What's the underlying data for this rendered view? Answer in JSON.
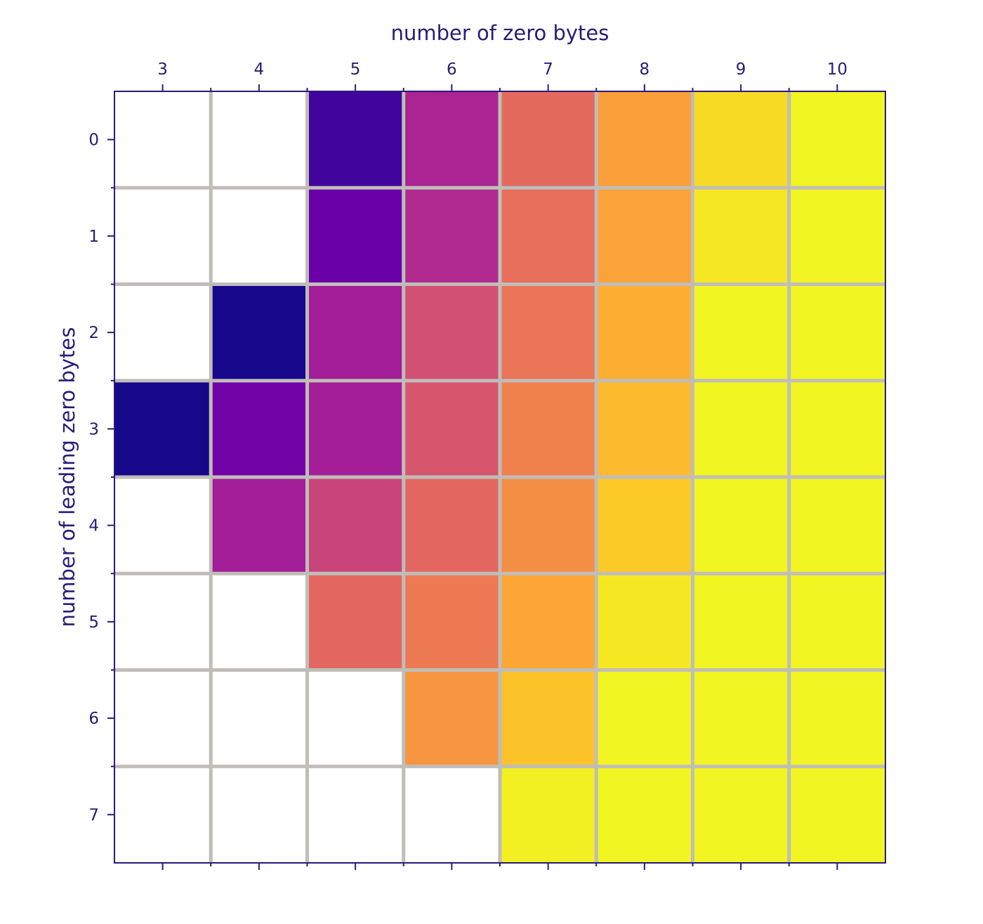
{
  "chart_data": {
    "type": "heatmap",
    "title": "",
    "xlabel": "number of zero bytes",
    "ylabel": "number of leading zero bytes",
    "x_categories": [
      "3",
      "4",
      "5",
      "6",
      "7",
      "8",
      "9",
      "10"
    ],
    "y_categories": [
      "0",
      "1",
      "2",
      "3",
      "4",
      "5",
      "6",
      "7"
    ],
    "x_axis_position": "top",
    "y_axis_inverted": true,
    "colormap": "plasma",
    "value_range": [
      0,
      1
    ],
    "grid": true,
    "grid_color": "#c0bdb9",
    "missing_cell_color": "#ffffff",
    "values": [
      [
        null,
        null,
        0.1,
        0.38,
        0.62,
        0.78,
        0.93,
        0.99
      ],
      [
        null,
        null,
        0.2,
        0.4,
        0.63,
        0.79,
        0.96,
        0.99
      ],
      [
        null,
        0.02,
        0.36,
        0.53,
        0.65,
        0.82,
        0.99,
        0.99
      ],
      [
        0.02,
        0.22,
        0.36,
        0.55,
        0.69,
        0.85,
        0.99,
        0.99
      ],
      [
        null,
        0.36,
        0.49,
        0.61,
        0.73,
        0.89,
        0.99,
        0.99
      ],
      [
        null,
        null,
        0.61,
        0.67,
        0.8,
        0.96,
        0.99,
        0.99
      ],
      [
        null,
        null,
        null,
        0.75,
        0.87,
        0.99,
        0.99,
        0.99
      ],
      [
        null,
        null,
        null,
        null,
        0.98,
        0.99,
        0.99,
        0.99
      ]
    ]
  },
  "colors": {
    "axis": "#2b1a78"
  }
}
